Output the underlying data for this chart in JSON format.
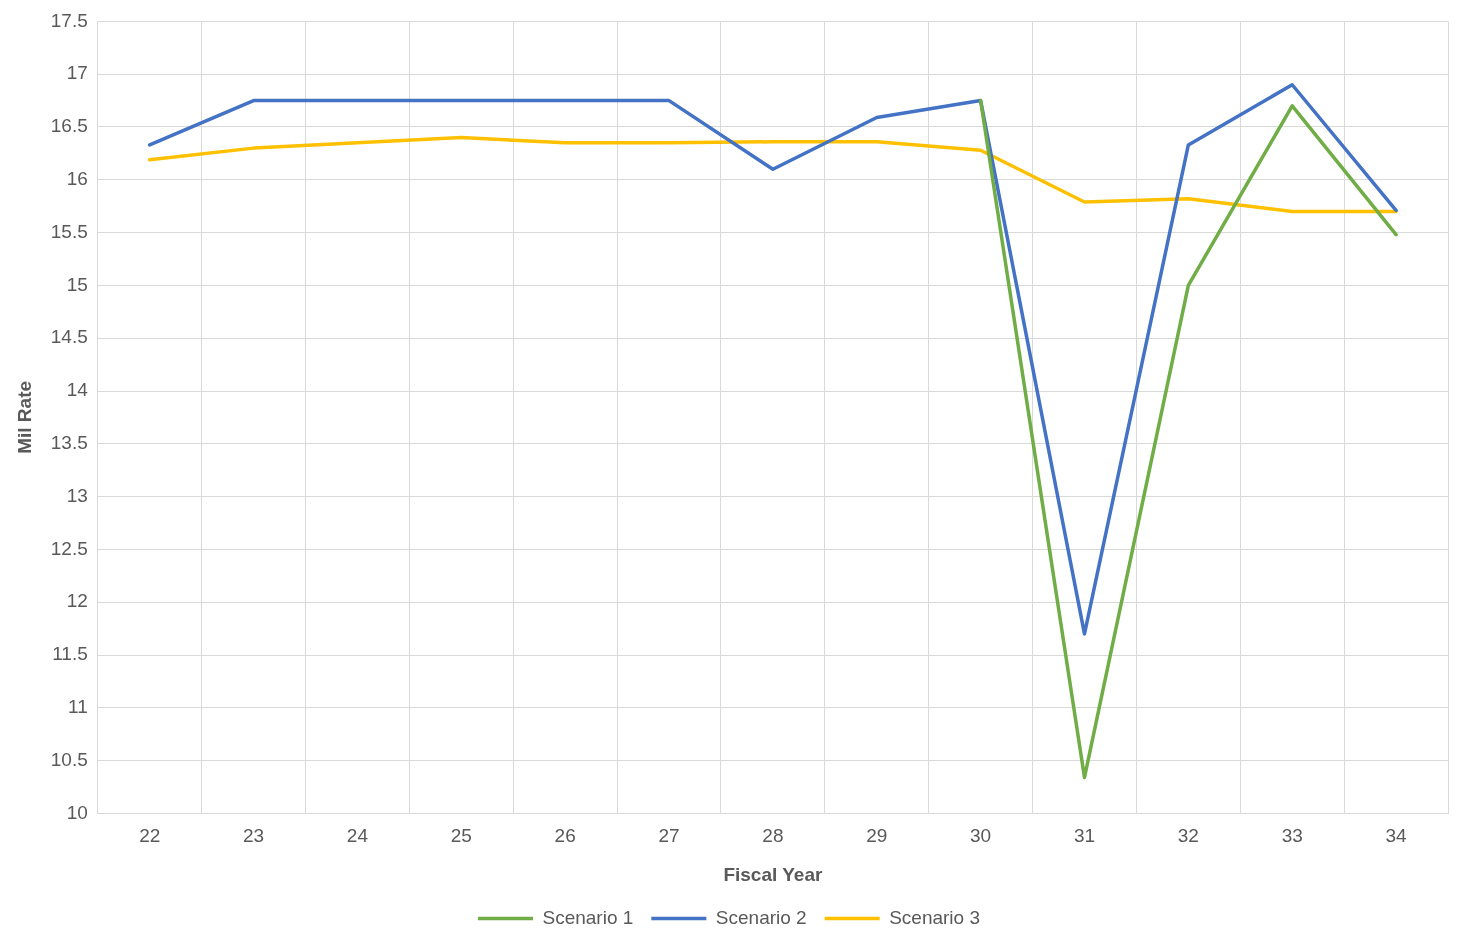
{
  "chart_data": {
    "type": "line",
    "xlabel": "Fiscal Year",
    "ylabel": "Mil Rate",
    "categories": [
      "22",
      "23",
      "24",
      "25",
      "26",
      "27",
      "28",
      "29",
      "30",
      "31",
      "32",
      "33",
      "34"
    ],
    "series": [
      {
        "name": "Scenario 1",
        "color": "#70ad47",
        "values": [
          null,
          null,
          null,
          null,
          null,
          null,
          null,
          null,
          16.75,
          10.34,
          15.0,
          16.7,
          15.48
        ]
      },
      {
        "name": "Scenario 2",
        "color": "#4472c4",
        "values": [
          16.33,
          16.75,
          16.75,
          16.75,
          16.75,
          16.75,
          16.1,
          16.59,
          16.75,
          11.7,
          16.33,
          16.9,
          15.71
        ]
      },
      {
        "name": "Scenario 3",
        "color": "#ffc000",
        "values": [
          16.19,
          16.3,
          16.35,
          16.4,
          16.35,
          16.35,
          16.36,
          16.36,
          16.28,
          15.79,
          15.82,
          15.7,
          15.7
        ]
      }
    ],
    "ylim": [
      10,
      17.5
    ],
    "yticks": [
      10,
      10.5,
      11,
      11.5,
      12,
      12.5,
      13,
      13.5,
      14,
      14.5,
      15,
      15.5,
      16,
      16.5,
      17,
      17.5
    ],
    "grid": true,
    "legend": "bottom",
    "marker": "none",
    "line_style": "solid"
  }
}
